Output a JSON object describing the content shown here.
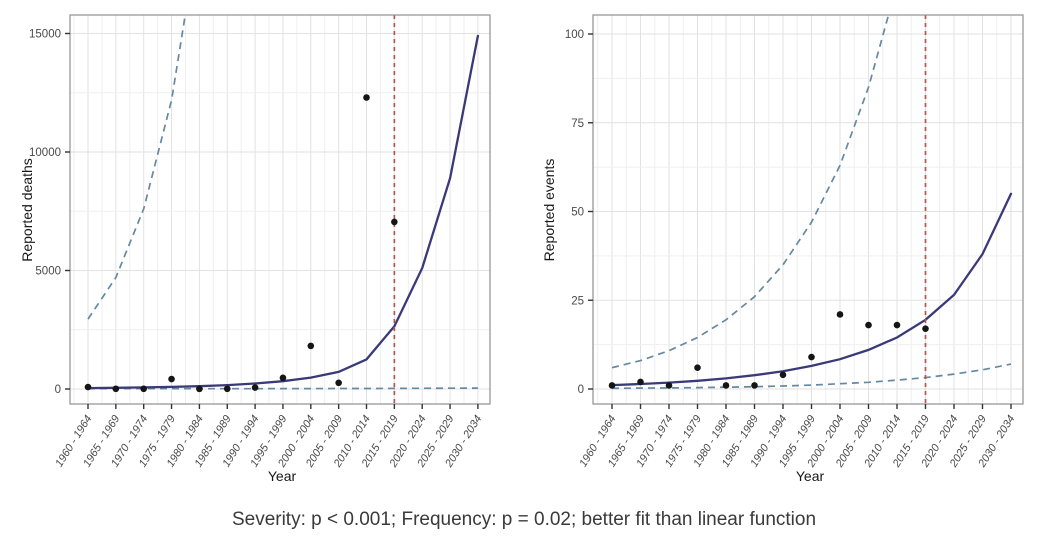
{
  "figure": {
    "caption": "Severity: p < 0.001; Frequency: p = 0.02; better fit than linear function"
  },
  "colors": {
    "fit_line": "#3a3a78",
    "ci_line": "#6589a2",
    "vline": "#b85450",
    "points": "#151515",
    "grid_major": "#e2e2e2",
    "grid_minor": "#efefef",
    "panel_border": "#909090",
    "tick_text": "#4a4a4a",
    "axis_title": "#171717"
  },
  "chart_data": [
    {
      "type": "scatter",
      "title": "",
      "ylabel": "Reported deaths",
      "xlabel": "Year",
      "categories": [
        "1960 - 1964",
        "1965 - 1969",
        "1970 - 1974",
        "1975 - 1979",
        "1980 - 1984",
        "1985 - 1989",
        "1990 - 1994",
        "1995 - 1999",
        "2000 - 2004",
        "2005 - 2009",
        "2010 - 2014",
        "2015 - 2019",
        "2020 - 2024",
        "2025 - 2029",
        "2030 - 2034"
      ],
      "y_ticks": [
        0,
        5000,
        10000,
        15000
      ],
      "ylim": [
        -650,
        15800
      ],
      "grid": true,
      "legend": "none",
      "observed_points": [
        80,
        10,
        10,
        420,
        5,
        10,
        60,
        470,
        1820,
        260,
        12300,
        7050
      ],
      "fit_curve": [
        40,
        52,
        68,
        90,
        120,
        165,
        230,
        330,
        480,
        720,
        1250,
        2650,
        5100,
        8900,
        14900
      ],
      "ci_upper": [
        2950,
        4700,
        7600,
        12200,
        19500
      ],
      "ci_lower": [
        12,
        12,
        12,
        12,
        12,
        13,
        14,
        15,
        17,
        19,
        22,
        25,
        28,
        32,
        38
      ],
      "vline_category": "2015 - 2019",
      "vline_index": 11
    },
    {
      "type": "scatter",
      "title": "",
      "ylabel": "Reported events",
      "xlabel": "Year",
      "categories": [
        "1960 - 1964",
        "1965 - 1969",
        "1970 - 1974",
        "1975 - 1979",
        "1980 - 1984",
        "1985 - 1989",
        "1990 - 1994",
        "1995 - 1999",
        "2000 - 2004",
        "2005 - 2009",
        "2010 - 2014",
        "2015 - 2019",
        "2020 - 2024",
        "2025 - 2029",
        "2030 - 2034"
      ],
      "y_ticks": [
        0,
        25,
        50,
        75,
        100
      ],
      "ylim": [
        -4,
        105
      ],
      "grid": true,
      "legend": "none",
      "observed_points": [
        1,
        2,
        1,
        6,
        1,
        1,
        4,
        9,
        21,
        18,
        18,
        17
      ],
      "fit_curve": [
        1.1,
        1.4,
        1.8,
        2.3,
        3.0,
        3.9,
        5.0,
        6.5,
        8.4,
        11.0,
        14.5,
        19.5,
        26.5,
        38,
        55
      ],
      "ci_upper": [
        6,
        8,
        10.8,
        14.5,
        19.5,
        26,
        35,
        47,
        63,
        85,
        114
      ],
      "ci_lower": [
        0.2,
        0.25,
        0.3,
        0.4,
        0.5,
        0.65,
        0.85,
        1.1,
        1.5,
        1.9,
        2.5,
        3.2,
        4.2,
        5.4,
        7.0
      ],
      "vline_category": "2015 - 2019",
      "vline_index": 11
    }
  ]
}
